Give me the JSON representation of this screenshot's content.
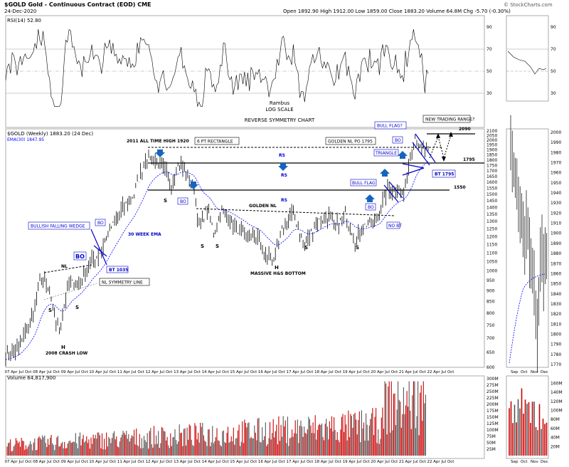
{
  "header": {
    "symbol_title": "$GOLD Gold - Continuous Contract (EOD) CME",
    "date": "24-Dec-2020",
    "ohlc": "Open 1892.90  High 1912.00  Low 1859.00  Close 1883.20  Volume 64.8M  Chg -5.70 (-0.30%)",
    "credit": "© StockCharts.com"
  },
  "rsi_panel": {
    "label": "RSI(14) 52.80",
    "ticks": [
      "90",
      "70",
      "50",
      "30"
    ],
    "notes": [
      "Rambus",
      "LOG SCALE",
      "REVERSE SYMMETRY CHART"
    ]
  },
  "price_panel": {
    "label": "$GOLD (Weekly) 1883.20 (24 Dec)",
    "ema_label": "EMA(30) 1847.95",
    "y_ticks": [
      "2100",
      "2050",
      "2000",
      "1950",
      "1900",
      "1850",
      "1800",
      "1750",
      "1700",
      "1650",
      "1600",
      "1550",
      "1500",
      "1450",
      "1400",
      "1350",
      "1300",
      "1250",
      "1200",
      "1150",
      "1100",
      "1050",
      "1000",
      "950",
      "900",
      "850",
      "800",
      "750",
      "700",
      "650",
      "600"
    ]
  },
  "annotations": {
    "ath": "2011 ALL TIME HIGH 1920",
    "rect": "6 PT RECTANGLE",
    "golden_po": "GOLDEN NL PO 1795",
    "bull_flag_q": "BULL FLAG?",
    "new_range": "NEW TRADING RANGE?",
    "lvl_2090": "2090",
    "lvl_1795": "1795",
    "lvl_1550": "1550",
    "rs": "RS",
    "bo": "BO",
    "triangle": "TRIANGLE",
    "bt1795": "BT 1795",
    "bull_flag": "BULL FLAG",
    "golden_nl": "GOLDEN NL",
    "no_bt": "NO BT",
    "bfw": "BULLISH FALLING WEDGE",
    "ema30": "30 WEEK EMA",
    "bt1035": "BT 1035",
    "nl": "NL",
    "nl_sym": "NL SYMMETRY LINE",
    "massive": "MASSIVE H&S BOTTOM",
    "crash": "2008 CRASH LOW",
    "s": "S",
    "h": "H"
  },
  "x_axis": {
    "labels": [
      "07",
      "Apr",
      "Jul",
      "Oct",
      "08",
      "Apr",
      "Jul",
      "Oct",
      "09",
      "Apr",
      "Jul",
      "Oct",
      "10",
      "Apr",
      "Jul",
      "Oct",
      "11",
      "Apr",
      "Jul",
      "Oct",
      "12",
      "Apr",
      "Jul",
      "Oct",
      "13",
      "Apr",
      "Jul",
      "Oct",
      "14",
      "Apr",
      "Jul",
      "Oct",
      "15",
      "Apr",
      "Jul",
      "Oct",
      "16",
      "Apr",
      "Jul",
      "Oct",
      "17",
      "Apr",
      "Jul",
      "Oct",
      "18",
      "Apr",
      "Jul",
      "Oct",
      "19",
      "Apr",
      "Jul",
      "Oct",
      "20",
      "Apr",
      "Jul",
      "Oct",
      "21",
      "Apr",
      "Jul",
      "Oct",
      "22",
      "Apr",
      "Jul",
      "Oct"
    ]
  },
  "volume_panel": {
    "label": "Volume 64,817,900",
    "ticks": [
      "300M",
      "275M",
      "250M",
      "225M",
      "200M",
      "175M",
      "150M",
      "125M",
      "100M",
      "75M",
      "50M",
      "25M"
    ]
  },
  "mini_panels": {
    "rsi_ticks": [
      "90",
      "70",
      "50",
      "30"
    ],
    "price_ticks": [
      "2000",
      "1990",
      "1980",
      "1970",
      "1960",
      "1950",
      "1940",
      "1930",
      "1920",
      "1910",
      "1900",
      "1890",
      "1880",
      "1870",
      "1860",
      "1850",
      "1840",
      "1830",
      "1820",
      "1810",
      "1800",
      "1790",
      "1780",
      "1770"
    ],
    "x_labels": [
      "Sep",
      "Oct",
      "Nov",
      "Dec"
    ],
    "vol_ticks": [
      "160M",
      "140M",
      "120M",
      "100M",
      "80M",
      "60M",
      "40M",
      "20M"
    ]
  },
  "colors": {
    "annotation_blue": "#0000cc",
    "rsi_fill": "#2e7d32",
    "volume_red": "#cc0000",
    "volume_gray": "#555555",
    "ema_blue": "#0000ff"
  },
  "chart_data": {
    "type": "line",
    "title": "$GOLD Gold - Continuous Contract (EOD) CME",
    "xlabel": "",
    "ylabel": "",
    "ylim": [
      600,
      2100
    ],
    "x": [
      "2007-01",
      "2007-06",
      "2007-12",
      "2008-03",
      "2008-06",
      "2008-10",
      "2009-02",
      "2009-06",
      "2009-10",
      "2010-02",
      "2010-06",
      "2010-12",
      "2011-04",
      "2011-09",
      "2012-02",
      "2012-07",
      "2012-10",
      "2013-04",
      "2013-06",
      "2013-09",
      "2013-12",
      "2014-03",
      "2014-07",
      "2014-12",
      "2015-05",
      "2015-08",
      "2015-12",
      "2016-03",
      "2016-07",
      "2016-12",
      "2017-04",
      "2017-09",
      "2017-12",
      "2018-04",
      "2018-08",
      "2018-12",
      "2019-04",
      "2019-06",
      "2019-09",
      "2020-01",
      "2020-03",
      "2020-05",
      "2020-08",
      "2020-10",
      "2020-12"
    ],
    "series": [
      {
        "name": "$GOLD (Weekly)",
        "values": [
          640,
          660,
          800,
          980,
          900,
          730,
          930,
          940,
          1040,
          1090,
          1230,
          1400,
          1500,
          1850,
          1770,
          1600,
          1780,
          1550,
          1250,
          1400,
          1220,
          1380,
          1300,
          1200,
          1210,
          1090,
          1060,
          1240,
          1360,
          1140,
          1290,
          1340,
          1250,
          1350,
          1180,
          1280,
          1290,
          1400,
          1530,
          1560,
          1480,
          1720,
          2050,
          1900,
          1883
        ]
      }
    ]
  }
}
